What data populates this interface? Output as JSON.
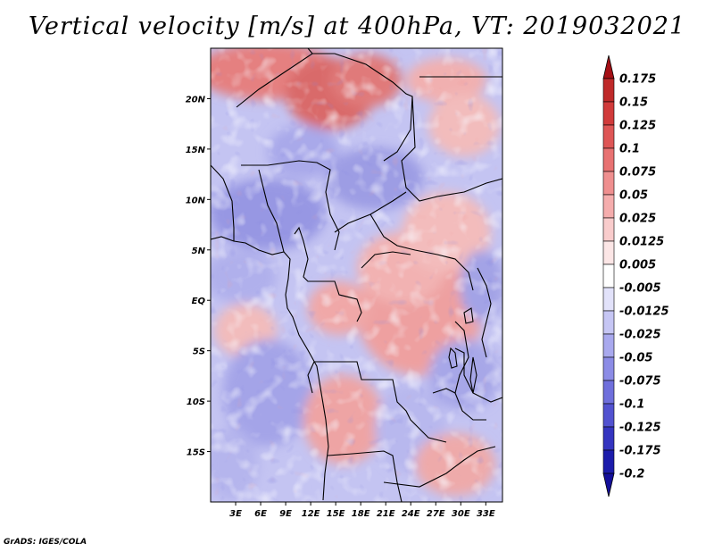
{
  "title": "Vertical velocity [m/s] at 400hPa, VT: 2019032021",
  "credit": "GrADS: IGES/COLA",
  "map": {
    "variable": "Vertical velocity",
    "units": "m/s",
    "level": "400hPa",
    "valid_time": "2019032021",
    "lon_range": [
      0,
      35
    ],
    "lat_range": [
      -20,
      25
    ],
    "lat_ticks": [
      {
        "value": 20,
        "label": "20N"
      },
      {
        "value": 15,
        "label": "15N"
      },
      {
        "value": 10,
        "label": "10N"
      },
      {
        "value": 5,
        "label": "5N"
      },
      {
        "value": 0,
        "label": "EQ"
      },
      {
        "value": -5,
        "label": "5S"
      },
      {
        "value": -10,
        "label": "10S"
      },
      {
        "value": -15,
        "label": "15S"
      }
    ],
    "lon_ticks": [
      {
        "value": 3,
        "label": "3E"
      },
      {
        "value": 6,
        "label": "6E"
      },
      {
        "value": 9,
        "label": "9E"
      },
      {
        "value": 12,
        "label": "12E"
      },
      {
        "value": 15,
        "label": "15E"
      },
      {
        "value": 18,
        "label": "18E"
      },
      {
        "value": 21,
        "label": "21E"
      },
      {
        "value": 24,
        "label": "24E"
      },
      {
        "value": 27,
        "label": "27E"
      },
      {
        "value": 30,
        "label": "30E"
      },
      {
        "value": 33,
        "label": "33E"
      }
    ]
  },
  "colorbar": {
    "levels": [
      {
        "label": "0.175",
        "color": "#a50f15"
      },
      {
        "label": "0.15",
        "color": "#bf2a2a"
      },
      {
        "label": "0.125",
        "color": "#d13b3b"
      },
      {
        "label": "0.1",
        "color": "#de5656"
      },
      {
        "label": "0.075",
        "color": "#e87272"
      },
      {
        "label": "0.05",
        "color": "#ef8f8f"
      },
      {
        "label": "0.025",
        "color": "#f5adad"
      },
      {
        "label": "0.0125",
        "color": "#f9cccc"
      },
      {
        "label": "0.005",
        "color": "#fce6e6"
      },
      {
        "label": "-0.005",
        "color": "#ffffff"
      },
      {
        "label": "-0.0125",
        "color": "#e2e2fa"
      },
      {
        "label": "-0.025",
        "color": "#c6c6f4"
      },
      {
        "label": "-0.05",
        "color": "#a9a9ee"
      },
      {
        "label": "-0.075",
        "color": "#8c8ce6"
      },
      {
        "label": "-0.1",
        "color": "#6f6fdc"
      },
      {
        "label": "-0.125",
        "color": "#5252d0"
      },
      {
        "label": "-0.175",
        "color": "#3535c0"
      },
      {
        "label": "-0.2",
        "color": "#1c1cab"
      }
    ],
    "top_color": "#a50f15",
    "bottom_color": "#140f9a"
  }
}
